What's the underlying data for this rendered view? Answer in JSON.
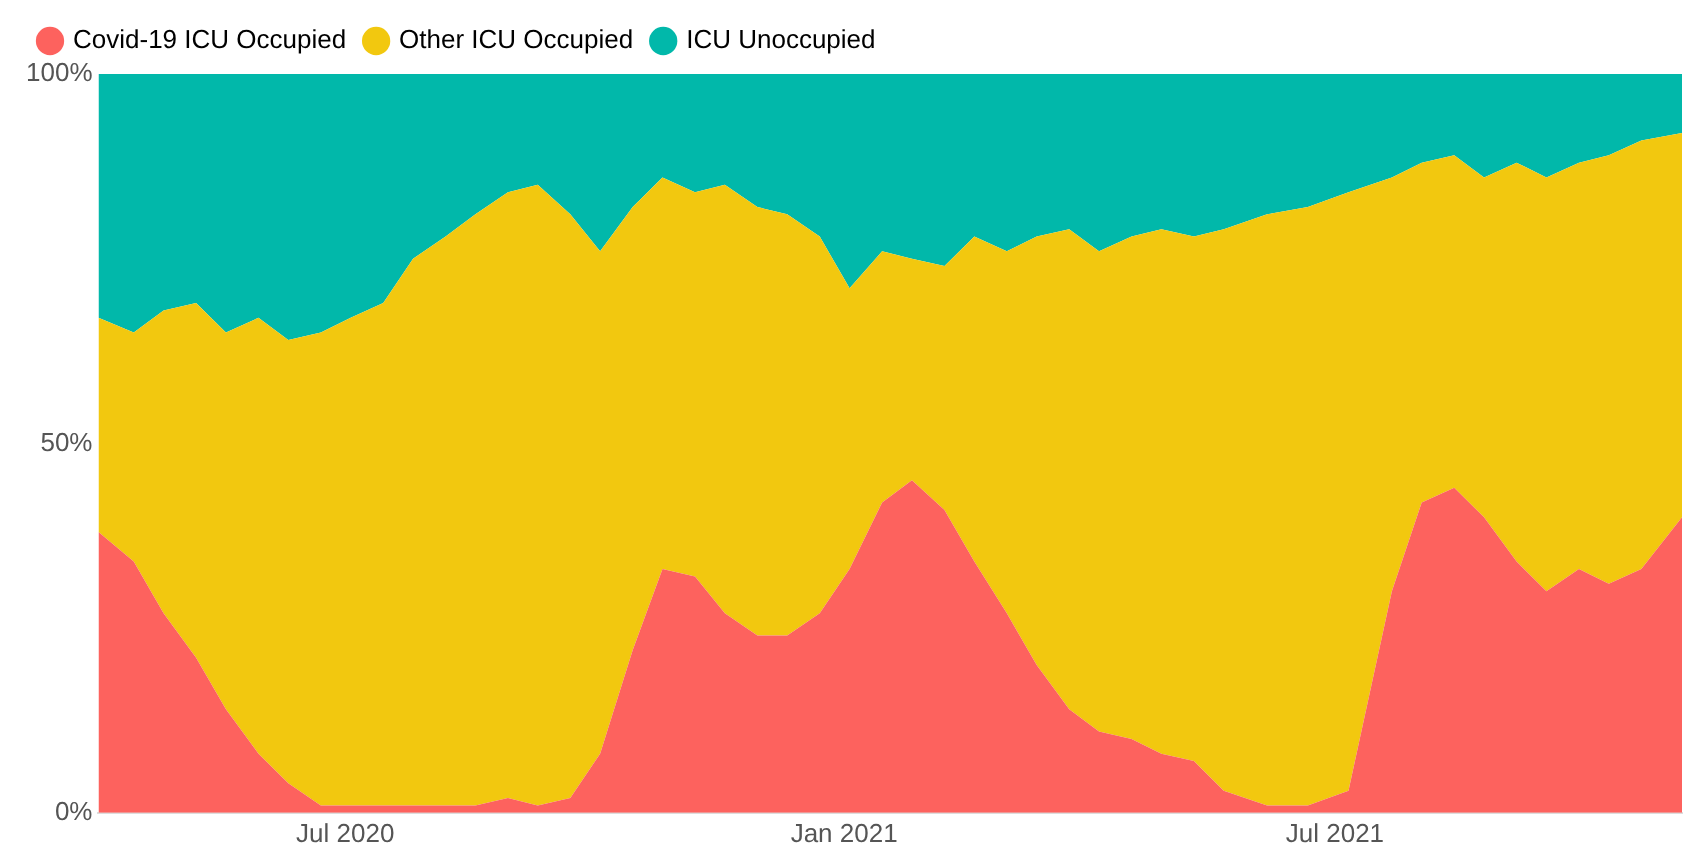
{
  "chart_data": {
    "type": "area",
    "stacked": true,
    "legend": "top left",
    "marker": "none",
    "grid": false,
    "x": [
      "2020-04-01",
      "2020-04-14",
      "2020-04-25",
      "2020-05-07",
      "2020-05-18",
      "2020-05-30",
      "2020-06-10",
      "2020-06-22",
      "2020-07-03",
      "2020-07-15",
      "2020-07-26",
      "2020-08-07",
      "2020-08-18",
      "2020-08-30",
      "2020-09-10",
      "2020-09-22",
      "2020-10-03",
      "2020-10-15",
      "2020-10-26",
      "2020-11-07",
      "2020-11-18",
      "2020-11-30",
      "2020-12-11",
      "2020-12-23",
      "2021-01-03",
      "2021-01-15",
      "2021-01-26",
      "2021-02-07",
      "2021-02-18",
      "2021-03-02",
      "2021-03-13",
      "2021-03-25",
      "2021-04-05",
      "2021-04-17",
      "2021-04-28",
      "2021-05-10",
      "2021-05-21",
      "2021-06-06",
      "2021-06-21",
      "2021-07-06",
      "2021-07-22",
      "2021-08-02",
      "2021-08-14",
      "2021-08-25",
      "2021-09-06",
      "2021-09-17",
      "2021-09-29",
      "2021-10-10",
      "2021-10-22",
      "2021-11-06"
    ],
    "series": [
      {
        "name": "Covid-19 ICU Occupied",
        "color": "#fd625e",
        "values": [
          38,
          34,
          27,
          21,
          14,
          8,
          4,
          1,
          1,
          1,
          1,
          1,
          1,
          2,
          1,
          2,
          8,
          22,
          33,
          32,
          27,
          24,
          24,
          27,
          33,
          42,
          45,
          41,
          34,
          27,
          20,
          14,
          11,
          10,
          8,
          7,
          3,
          1,
          1,
          3,
          30,
          42,
          44,
          40,
          34,
          30,
          33,
          31,
          33,
          40
        ]
      },
      {
        "name": "Other ICU Occupied",
        "color": "#f2c80f",
        "values": [
          29,
          31,
          41,
          48,
          51,
          59,
          60,
          64,
          66,
          68,
          74,
          77,
          80,
          82,
          84,
          79,
          68,
          60,
          53,
          52,
          58,
          58,
          57,
          51,
          38,
          34,
          30,
          33,
          44,
          49,
          58,
          65,
          65,
          68,
          71,
          71,
          76,
          80,
          81,
          81,
          56,
          46,
          45,
          46,
          54,
          56,
          55,
          58,
          58,
          52
        ]
      },
      {
        "name": "ICU Unoccupied",
        "color": "#01b8aa",
        "values": [
          33,
          35,
          32,
          31,
          35,
          33,
          36,
          35,
          33,
          31,
          25,
          22,
          19,
          16,
          15,
          19,
          24,
          18,
          14,
          16,
          15,
          18,
          19,
          22,
          29,
          24,
          25,
          26,
          22,
          24,
          22,
          21,
          24,
          22,
          21,
          22,
          21,
          19,
          18,
          16,
          14,
          12,
          11,
          14,
          12,
          14,
          12,
          11,
          9,
          8
        ]
      }
    ],
    "xlim": [
      "2020-04-01",
      "2021-11-06"
    ],
    "xticks": [
      {
        "value": "2020-07-01",
        "label": "Jul 2020"
      },
      {
        "value": "2021-01-01",
        "label": "Jan 2021"
      },
      {
        "value": "2021-07-01",
        "label": "Jul 2021"
      }
    ],
    "ylim": [
      0,
      100
    ],
    "yticks": [
      {
        "value": 0,
        "label": "0%"
      },
      {
        "value": 50,
        "label": "50%"
      },
      {
        "value": 100,
        "label": "100%"
      }
    ]
  }
}
